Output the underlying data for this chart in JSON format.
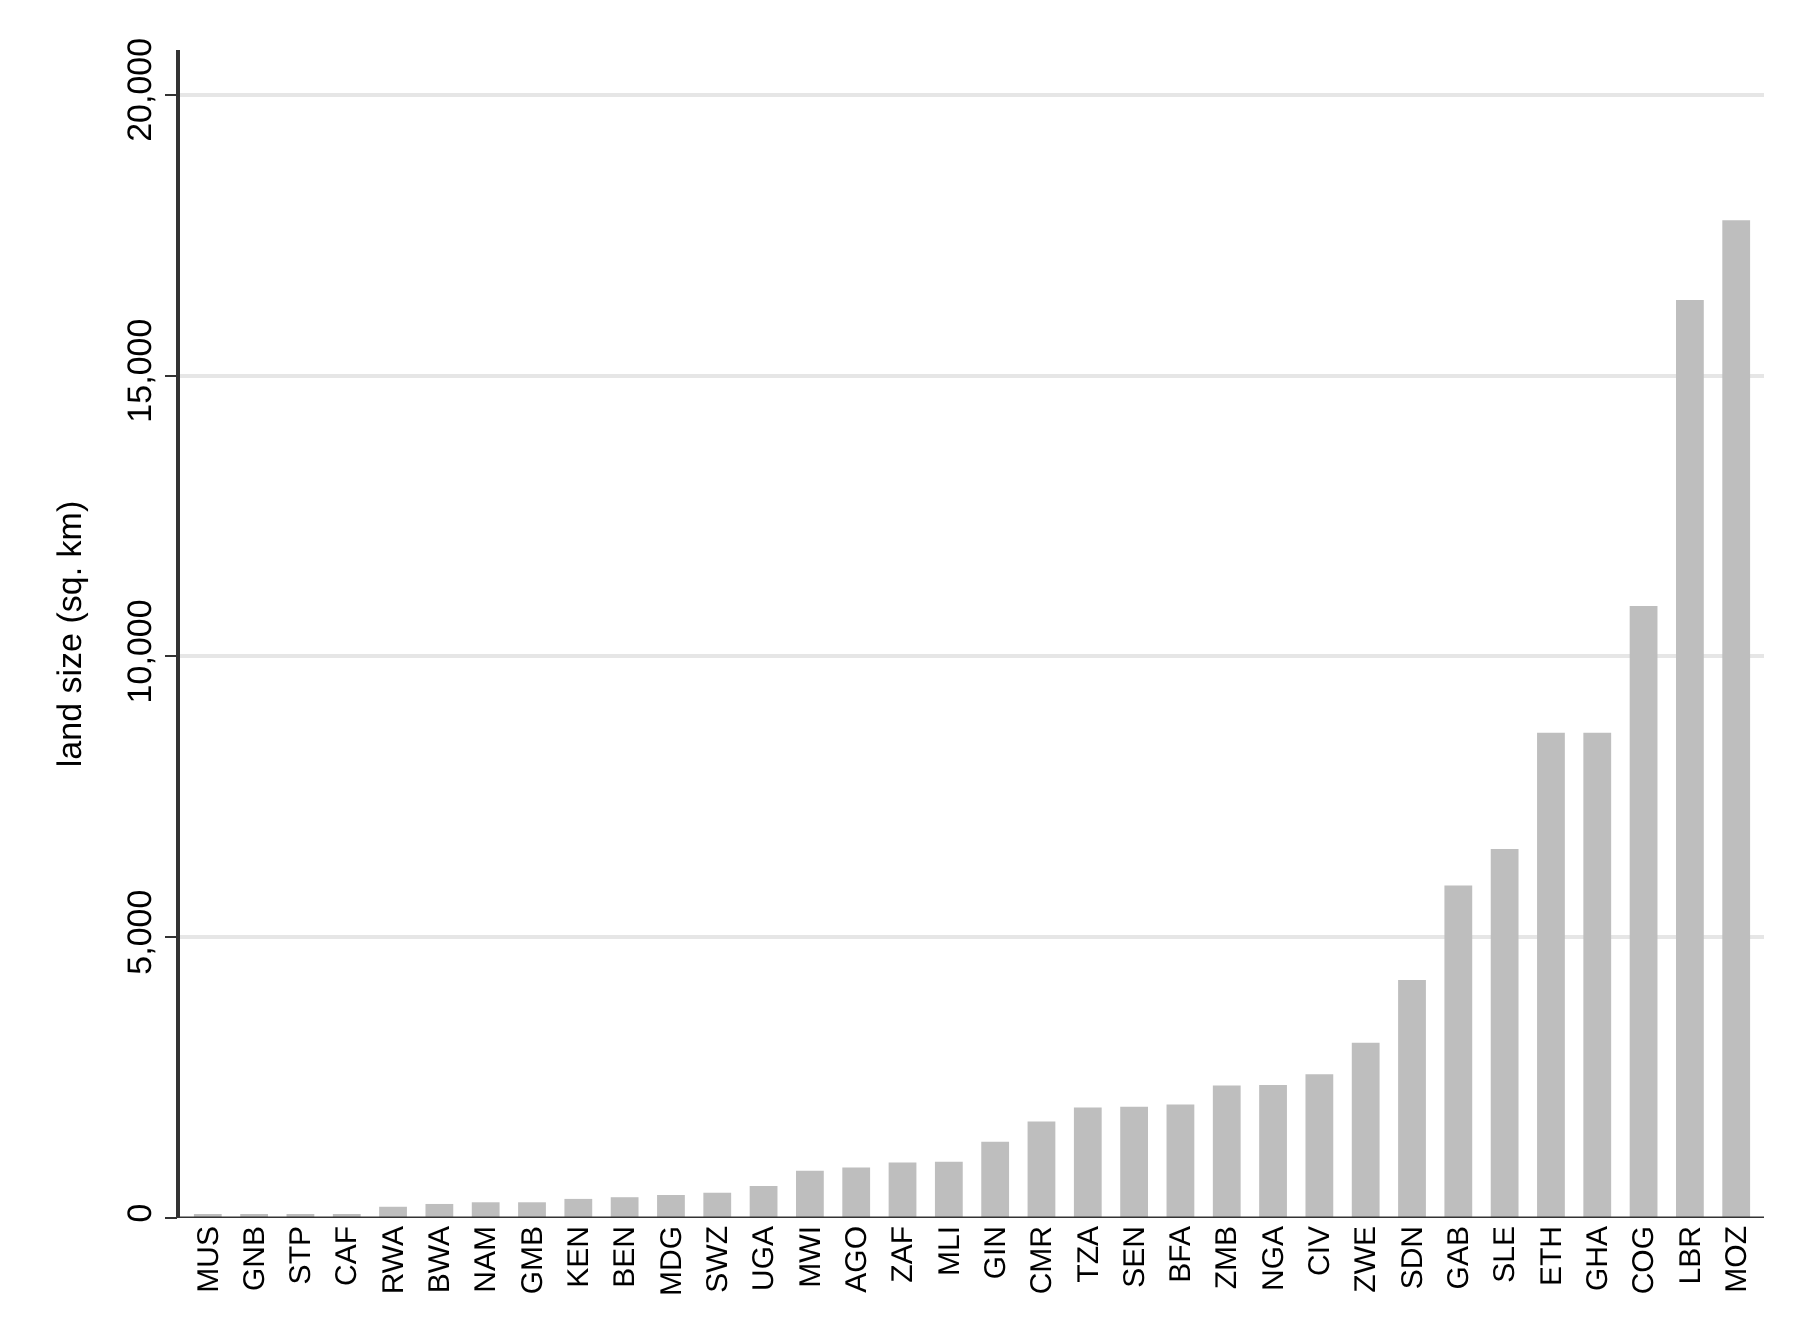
{
  "chart_data": {
    "type": "bar",
    "ylabel": "land size (sq. km)",
    "categories": [
      "MUS",
      "GNB",
      "STP",
      "CAF",
      "RWA",
      "BWA",
      "NAM",
      "GMB",
      "KEN",
      "BEN",
      "MDG",
      "SWZ",
      "UGA",
      "MWI",
      "AGO",
      "ZAF",
      "MLI",
      "GIN",
      "CMR",
      "TZA",
      "SEN",
      "BFA",
      "ZMB",
      "NGA",
      "CIV",
      "ZWE",
      "SDN",
      "GAB",
      "SLE",
      "ETH",
      "GHA",
      "COG",
      "LBR",
      "MOZ"
    ],
    "values": [
      40,
      40,
      40,
      50,
      200,
      250,
      280,
      280,
      340,
      370,
      410,
      450,
      570,
      840,
      900,
      990,
      1000,
      1360,
      1720,
      1970,
      1980,
      2020,
      2360,
      2370,
      2560,
      3120,
      4240,
      5920,
      6570,
      8640,
      8640,
      10900,
      16350,
      17770
    ],
    "color": "#bebebe",
    "ylim": [
      0,
      20800
    ],
    "yticks": [
      {
        "value": 0,
        "label": "0"
      },
      {
        "value": 5000,
        "label": "5,000"
      },
      {
        "value": 10000,
        "label": "10,000"
      },
      {
        "value": 15000,
        "label": "15,000"
      },
      {
        "value": 20000,
        "label": "20,000"
      }
    ],
    "grid": "y"
  }
}
